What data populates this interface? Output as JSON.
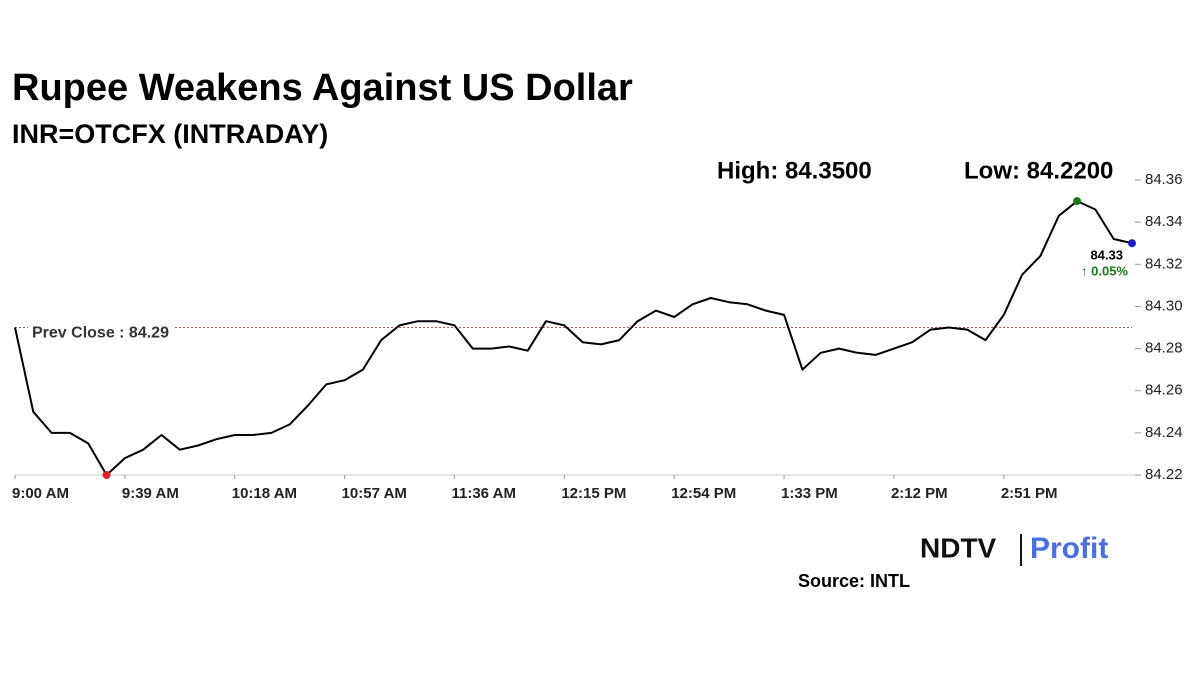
{
  "chart_data": {
    "type": "line",
    "title": "Rupee Weakens Against US Dollar",
    "subtitle": "INR=OTCFX (INTRADAY)",
    "annotations": {
      "high": "High: 84.3500",
      "low": "Low: 84.2200",
      "last_value": "84.33",
      "last_change": "↑ 0.05%"
    },
    "reference_line": {
      "value": 84.29,
      "label": "Prev Close : 84.29",
      "color": "#c0504d"
    },
    "categories": [
      "9:00 AM",
      null,
      null,
      null,
      null,
      null,
      "9:39 AM",
      null,
      null,
      null,
      null,
      null,
      "10:18 AM",
      null,
      null,
      null,
      null,
      null,
      "10:57 AM",
      null,
      null,
      null,
      null,
      null,
      "11:36 AM",
      null,
      null,
      null,
      null,
      null,
      "12:15 PM",
      null,
      null,
      null,
      null,
      null,
      "12:54 PM",
      null,
      null,
      null,
      null,
      null,
      "1:33 PM",
      null,
      null,
      null,
      null,
      null,
      "2:12 PM",
      null,
      null,
      null,
      null,
      null,
      "2:51 PM",
      null,
      null,
      null,
      null,
      null,
      null,
      null
    ],
    "series": [
      {
        "name": "INR=OTCFX",
        "color": "#000000",
        "values": [
          84.29,
          84.25,
          84.24,
          84.24,
          84.235,
          84.22,
          84.228,
          84.232,
          84.239,
          84.232,
          84.234,
          84.237,
          84.239,
          84.239,
          84.24,
          84.244,
          84.253,
          84.263,
          84.265,
          84.27,
          84.284,
          84.291,
          84.293,
          84.293,
          84.291,
          84.28,
          84.28,
          84.281,
          84.279,
          84.293,
          84.291,
          84.283,
          84.282,
          84.284,
          84.293,
          84.298,
          84.295,
          84.301,
          84.304,
          84.302,
          84.301,
          84.298,
          84.296,
          84.27,
          84.278,
          84.28,
          84.278,
          84.277,
          84.28,
          84.283,
          84.289,
          84.29,
          84.289,
          84.284,
          84.296,
          84.315,
          84.324,
          84.343,
          84.35,
          84.346,
          84.332,
          84.33
        ]
      }
    ],
    "markers": {
      "high_color": "#1a7a1a",
      "low_color": "#e02020",
      "last_color": "#1a1acc"
    },
    "ylim": [
      84.22,
      84.36
    ],
    "yticks": [
      84.22,
      84.24,
      84.26,
      84.28,
      {
        "value": 84.3,
        "label": "84.30"
      },
      84.32,
      84.34,
      84.36
    ],
    "source": "Source: INTL",
    "logo": {
      "left": "NDTV",
      "right": "Profit"
    }
  }
}
